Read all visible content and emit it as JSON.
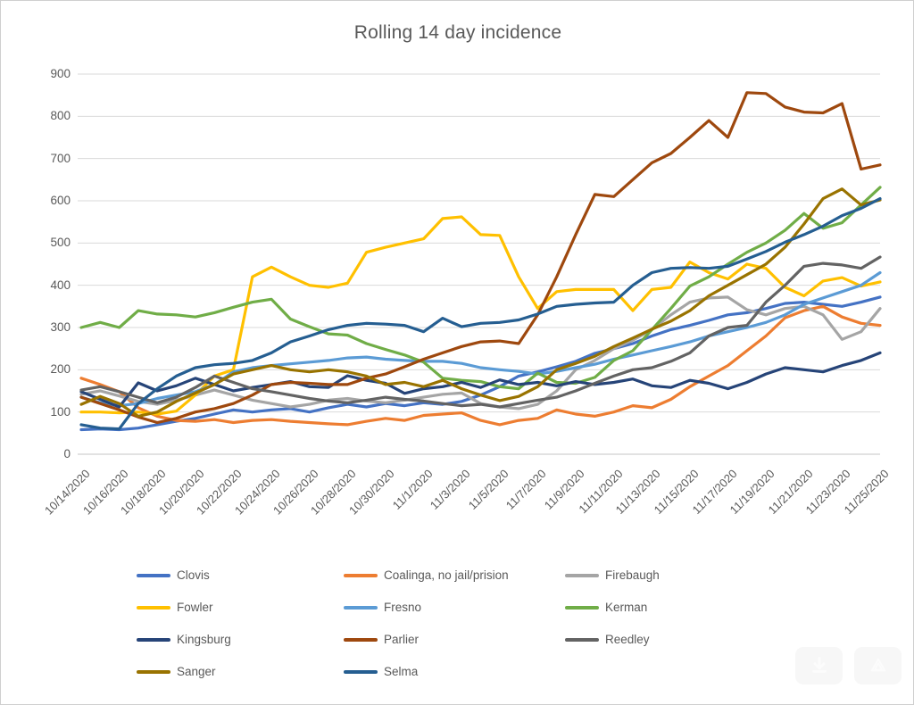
{
  "page": {
    "title": "Rolling 14 day incidence"
  },
  "axis_colors": {
    "grid": "#d9d9d9",
    "baseline": "#c6c6c6",
    "tick_text": "#595959",
    "title_text": "#595959"
  },
  "overlay_buttons": [
    {
      "label": "download",
      "icon": "download-arrow-icon"
    },
    {
      "label": "visual-search",
      "icon": "recycle-icon"
    }
  ],
  "chart_data": {
    "type": "line",
    "title": "Rolling 14 day incidence",
    "xlabel": "",
    "ylabel": "",
    "ylim": [
      0,
      900
    ],
    "y_ticks": [
      0,
      100,
      200,
      300,
      400,
      500,
      600,
      700,
      800,
      900
    ],
    "grid": "horizontal-only",
    "legend_position": "bottom",
    "x": [
      "10/14/2020",
      "10/15/2020",
      "10/16/2020",
      "10/17/2020",
      "10/18/2020",
      "10/19/2020",
      "10/20/2020",
      "10/21/2020",
      "10/22/2020",
      "10/23/2020",
      "10/24/2020",
      "10/25/2020",
      "10/26/2020",
      "10/27/2020",
      "10/28/2020",
      "10/29/2020",
      "10/30/2020",
      "10/31/2020",
      "11/1/2020",
      "11/2/2020",
      "11/3/2020",
      "11/4/2020",
      "11/5/2020",
      "11/6/2020",
      "11/7/2020",
      "11/8/2020",
      "11/9/2020",
      "11/10/2020",
      "11/11/2020",
      "11/12/2020",
      "11/13/2020",
      "11/14/2020",
      "11/15/2020",
      "11/16/2020",
      "11/17/2020",
      "11/18/2020",
      "11/19/2020",
      "11/20/2020",
      "11/21/2020",
      "11/22/2020",
      "11/23/2020",
      "11/24/2020",
      "11/25/2020"
    ],
    "x_tick_labels": [
      "10/14/2020",
      "10/16/2020",
      "10/18/2020",
      "10/20/2020",
      "10/22/2020",
      "10/24/2020",
      "10/26/2020",
      "10/28/2020",
      "10/30/2020",
      "11/1/2020",
      "11/3/2020",
      "11/5/2020",
      "11/7/2020",
      "11/9/2020",
      "11/11/2020",
      "11/13/2020",
      "11/15/2020",
      "11/17/2020",
      "11/19/2020",
      "11/21/2020",
      "11/23/2020",
      "11/25/2020"
    ],
    "series": [
      {
        "name": "Clovis",
        "color": "#4472C4",
        "values": [
          58,
          60,
          58,
          62,
          70,
          78,
          85,
          95,
          105,
          100,
          105,
          108,
          100,
          110,
          118,
          112,
          120,
          115,
          122,
          118,
          125,
          140,
          160,
          185,
          195,
          207,
          220,
          239,
          250,
          262,
          280,
          295,
          305,
          317,
          330,
          335,
          345,
          357,
          360,
          355,
          350,
          360,
          372
        ]
      },
      {
        "name": "Coalinga, no jail/prision",
        "color": "#ED7D31",
        "values": [
          180,
          165,
          148,
          110,
          90,
          80,
          78,
          82,
          75,
          80,
          82,
          78,
          75,
          72,
          70,
          78,
          85,
          80,
          92,
          95,
          98,
          80,
          70,
          80,
          85,
          105,
          95,
          90,
          100,
          115,
          110,
          130,
          160,
          185,
          210,
          245,
          280,
          323,
          340,
          350,
          325,
          310,
          305
        ]
      },
      {
        "name": "Firebaugh",
        "color": "#A5A5A5",
        "values": [
          142,
          150,
          138,
          125,
          118,
          128,
          140,
          152,
          140,
          128,
          120,
          112,
          118,
          128,
          132,
          126,
          122,
          128,
          135,
          142,
          145,
          120,
          112,
          108,
          118,
          150,
          200,
          222,
          250,
          270,
          295,
          330,
          360,
          370,
          372,
          342,
          330,
          345,
          350,
          330,
          272,
          290,
          345
        ]
      },
      {
        "name": "Fowler",
        "color": "#FFC000",
        "values": [
          100,
          100,
          98,
          100,
          95,
          102,
          140,
          185,
          200,
          420,
          443,
          420,
          400,
          395,
          405,
          478,
          490,
          500,
          510,
          558,
          562,
          520,
          518,
          420,
          345,
          385,
          390,
          390,
          390,
          340,
          390,
          395,
          455,
          430,
          415,
          450,
          440,
          395,
          375,
          410,
          418,
          398,
          408
        ]
      },
      {
        "name": "Fresno",
        "color": "#5B9BD5",
        "values": [
          135,
          122,
          115,
          120,
          132,
          140,
          148,
          165,
          195,
          205,
          210,
          214,
          218,
          222,
          228,
          230,
          225,
          222,
          220,
          220,
          215,
          205,
          200,
          196,
          190,
          196,
          205,
          213,
          225,
          235,
          245,
          255,
          266,
          280,
          290,
          300,
          312,
          330,
          355,
          370,
          385,
          400,
          430
        ]
      },
      {
        "name": "Kerman",
        "color": "#70AD47",
        "values": [
          300,
          312,
          300,
          340,
          332,
          330,
          325,
          335,
          348,
          360,
          367,
          320,
          302,
          285,
          282,
          262,
          248,
          235,
          218,
          180,
          175,
          172,
          160,
          155,
          192,
          170,
          168,
          182,
          222,
          245,
          295,
          345,
          398,
          420,
          450,
          478,
          500,
          530,
          570,
          535,
          548,
          590,
          632
        ]
      },
      {
        "name": "Kingsburg",
        "color": "#264478",
        "values": [
          148,
          130,
          112,
          169,
          150,
          162,
          180,
          165,
          150,
          158,
          165,
          172,
          160,
          158,
          186,
          175,
          168,
          144,
          155,
          160,
          170,
          158,
          176,
          165,
          170,
          162,
          172,
          165,
          170,
          178,
          162,
          158,
          175,
          168,
          155,
          170,
          190,
          205,
          200,
          195,
          210,
          222,
          240
        ]
      },
      {
        "name": "Parlier",
        "color": "#9E480E",
        "values": [
          135,
          120,
          105,
          88,
          75,
          85,
          100,
          108,
          120,
          140,
          165,
          170,
          168,
          165,
          165,
          180,
          190,
          207,
          225,
          240,
          255,
          266,
          268,
          262,
          330,
          420,
          520,
          615,
          610,
          650,
          690,
          712,
          750,
          790,
          750,
          856,
          854,
          822,
          810,
          808,
          830,
          675,
          685
        ]
      },
      {
        "name": "Reedley",
        "color": "#636363",
        "values": [
          152,
          160,
          148,
          135,
          122,
          135,
          158,
          185,
          170,
          155,
          148,
          140,
          132,
          126,
          122,
          128,
          135,
          130,
          126,
          120,
          115,
          118,
          112,
          120,
          128,
          135,
          150,
          168,
          185,
          200,
          205,
          220,
          240,
          280,
          300,
          305,
          360,
          400,
          445,
          452,
          448,
          440,
          467
        ]
      },
      {
        "name": "Sanger",
        "color": "#997300",
        "values": [
          118,
          137,
          120,
          90,
          100,
          125,
          145,
          165,
          190,
          200,
          210,
          200,
          195,
          200,
          195,
          185,
          165,
          170,
          160,
          175,
          155,
          140,
          127,
          137,
          160,
          200,
          215,
          232,
          255,
          275,
          296,
          315,
          340,
          375,
          400,
          425,
          450,
          490,
          545,
          605,
          628,
          590,
          602
        ]
      },
      {
        "name": "Selma",
        "color": "#255E91",
        "values": [
          70,
          62,
          60,
          120,
          155,
          185,
          205,
          212,
          215,
          222,
          240,
          266,
          280,
          295,
          305,
          310,
          308,
          305,
          290,
          322,
          302,
          310,
          312,
          318,
          332,
          350,
          355,
          358,
          360,
          400,
          430,
          440,
          442,
          440,
          445,
          462,
          480,
          502,
          520,
          540,
          565,
          582,
          605
        ]
      }
    ]
  }
}
